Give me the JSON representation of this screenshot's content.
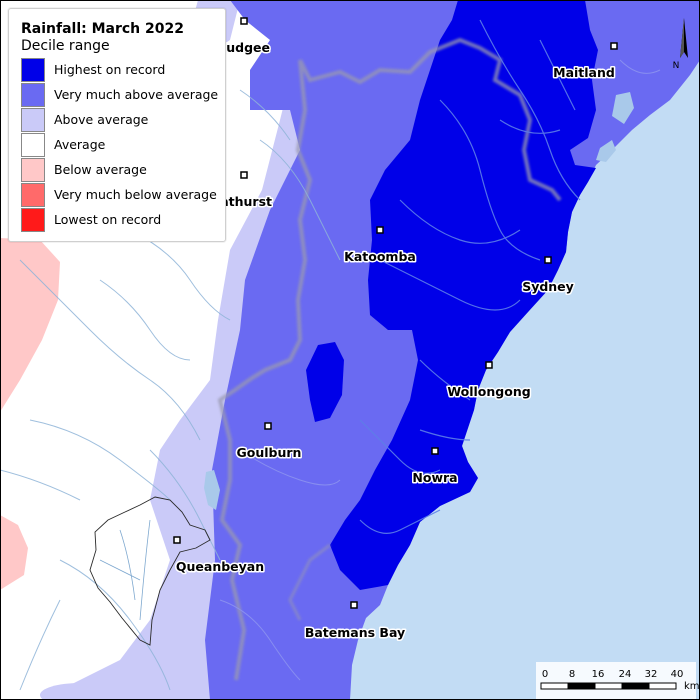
{
  "legend": {
    "title": "Rainfall: March 2022",
    "subtitle": "Decile range",
    "items": [
      {
        "label": "Highest on record",
        "color": "#0000e8"
      },
      {
        "label": "Very much above average",
        "color": "#6a6af2"
      },
      {
        "label": "Above average",
        "color": "#cacaf8"
      },
      {
        "label": "Average",
        "color": "#ffffff"
      },
      {
        "label": "Below average",
        "color": "#ffc8c8"
      },
      {
        "label": "Very much below average",
        "color": "#ff6a6a"
      },
      {
        "label": "Lowest on record",
        "color": "#ff1a1a"
      }
    ]
  },
  "cities": {
    "mudgee": "Mudgee",
    "maitland": "Maitland",
    "bathurst": "Bathurst",
    "katoomba": "Katoomba",
    "sydney": "Sydney",
    "wollongong": "Wollongong",
    "goulburn": "Goulburn",
    "nowra": "Nowra",
    "queanbeyan": "Queanbeyan",
    "batemans_bay": "Batemans Bay"
  },
  "scale_bar": {
    "ticks": [
      "0",
      "8",
      "16",
      "24",
      "32",
      "40"
    ],
    "unit": "km"
  },
  "north_arrow": {
    "label": "N"
  },
  "colors": {
    "ocean": "#c2dcf4",
    "highest": "#0000e8",
    "very_much_above": "#6a6af2",
    "above": "#cacaf8",
    "average": "#ffffff",
    "below": "#ffc8c8"
  }
}
